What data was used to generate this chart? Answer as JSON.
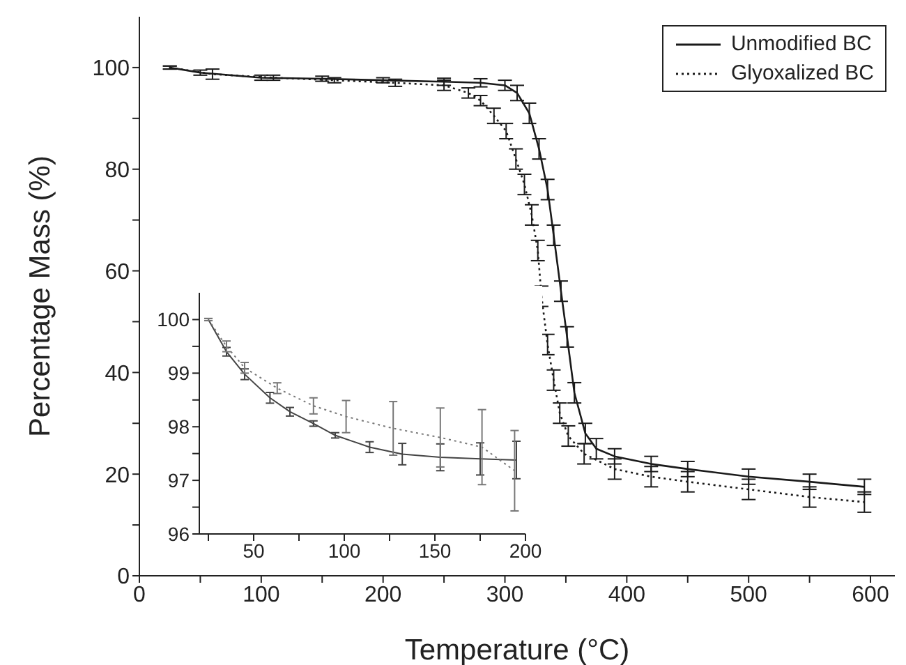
{
  "chart_data": [
    {
      "type": "line",
      "xlabel": "Temperature (°C)",
      "ylabel": "Percentage Mass (%)",
      "xlim": [
        0,
        620
      ],
      "ylim": [
        0,
        110
      ],
      "xticks": [
        0,
        {
          "value": 50,
          "label": null
        },
        100,
        {
          "value": 150,
          "label": null
        },
        200,
        {
          "value": 250,
          "label": null
        },
        300,
        {
          "value": 350,
          "label": null
        },
        400,
        {
          "value": 450,
          "label": null
        },
        500,
        {
          "value": 550,
          "label": null
        },
        600
      ],
      "yticks": [
        0,
        {
          "value": 10,
          "label": null
        },
        20,
        {
          "value": 30,
          "label": null
        },
        40,
        {
          "value": 50,
          "label": null
        },
        60,
        {
          "value": 70,
          "label": null
        },
        80,
        {
          "value": 90,
          "label": null
        },
        100
      ],
      "legend": "top right",
      "marker": "none",
      "grid": false,
      "series": [
        {
          "name": "Unmodified BC",
          "color": "#1a1a1a",
          "line_style": "solid",
          "x": [
            25,
            50,
            100,
            150,
            200,
            250,
            280,
            300,
            310,
            320,
            328,
            335,
            340,
            346,
            351,
            357,
            366,
            375,
            390,
            420,
            450,
            500,
            550,
            595
          ],
          "values": [
            100,
            99,
            98,
            97.8,
            97.5,
            97.2,
            97,
            96.5,
            95,
            91,
            84,
            76,
            67,
            56,
            47,
            36,
            28,
            25,
            23.5,
            22,
            21,
            19.5,
            18.5,
            17.5
          ],
          "errors": [
            0.3,
            0.5,
            0.5,
            0.5,
            0.5,
            0.7,
            0.8,
            1,
            1.5,
            2,
            2,
            2,
            2,
            2,
            2,
            2,
            2,
            2,
            1.5,
            1.5,
            1.5,
            1.5,
            1.5,
            1.5
          ]
        },
        {
          "name": "Glyoxalized BC",
          "color": "#1a1a1a",
          "line_style": "dotted",
          "x": [
            25,
            60,
            110,
            160,
            210,
            250,
            270,
            280,
            291,
            301,
            309,
            316,
            322,
            327,
            330,
            335,
            340,
            345,
            352,
            365,
            390,
            420,
            450,
            500,
            550,
            595
          ],
          "values": [
            100,
            98.7,
            98,
            97.5,
            97,
            96.5,
            95,
            93.5,
            90.5,
            87.5,
            82,
            77,
            71,
            64,
            55,
            45.5,
            38.5,
            32,
            27.5,
            24,
            21,
            19.5,
            18.5,
            17,
            15.5,
            14.5
          ],
          "errors": [
            0.3,
            1,
            0.5,
            0.5,
            0.7,
            1,
            1,
            1,
            1.5,
            1.5,
            2,
            2,
            2,
            2,
            2,
            2,
            2,
            2,
            2,
            2,
            2,
            2,
            2,
            2,
            2,
            2
          ]
        }
      ]
    },
    {
      "type": "line",
      "xlim": [
        20,
        200
      ],
      "ylim": [
        96,
        100.5
      ],
      "xticks": [
        {
          "value": 25,
          "label": null
        },
        50,
        {
          "value": 75,
          "label": null
        },
        100,
        {
          "value": 125,
          "label": null
        },
        150,
        {
          "value": 175,
          "label": null
        },
        200
      ],
      "yticks": [
        96,
        {
          "value": 96.5,
          "label": null
        },
        97,
        {
          "value": 97.5,
          "label": null
        },
        98,
        {
          "value": 98.5,
          "label": null
        },
        99,
        {
          "value": 99.5,
          "label": null
        },
        100
      ],
      "marker": "none",
      "grid": false,
      "series": [
        {
          "color": "#444444",
          "line_style": "solid",
          "x": [
            25,
            35,
            45,
            59,
            70,
            83,
            95,
            114,
            132,
            153,
            175,
            195
          ],
          "values": [
            100,
            99.4,
            98.98,
            98.54,
            98.28,
            98.06,
            97.84,
            97.62,
            97.49,
            97.43,
            97.4,
            97.38
          ],
          "errors": [
            0.02,
            0.08,
            0.1,
            0.1,
            0.08,
            0.05,
            0.05,
            0.1,
            0.2,
            0.25,
            0.3,
            0.35
          ]
        },
        {
          "color": "#777777",
          "line_style": "dotted",
          "x": [
            25,
            35,
            45,
            63,
            83,
            101,
            127,
            153,
            176,
            194
          ],
          "values": [
            100,
            99.5,
            99.1,
            98.72,
            98.39,
            98.19,
            97.97,
            97.8,
            97.62,
            97.18
          ],
          "errors": [
            0.02,
            0.1,
            0.1,
            0.1,
            0.15,
            0.3,
            0.5,
            0.55,
            0.7,
            0.75
          ]
        }
      ]
    }
  ]
}
